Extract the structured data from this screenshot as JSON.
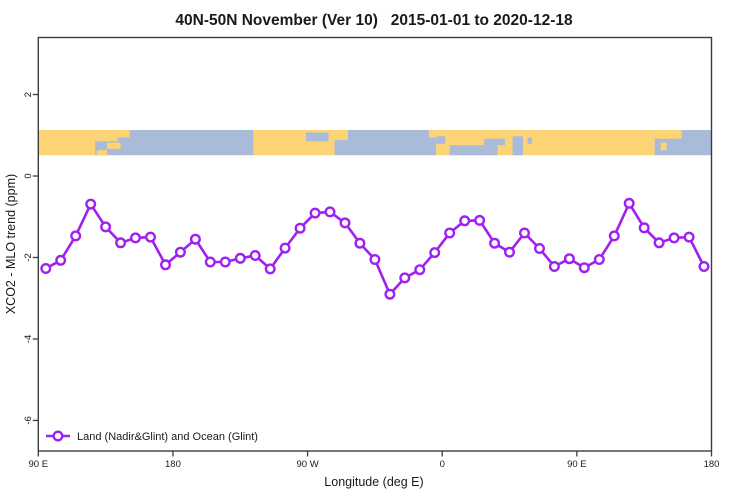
{
  "window": {
    "title": "40N-50N November (Ver 10)   2015-01-01 to 2020-12-18"
  },
  "colors": {
    "series_purple": "#A020F0",
    "marker_fill": "#ffffff",
    "land_orange": "#FCD476",
    "ocean_blue": "#A9BBD9",
    "axis_line": "#3c3c3c",
    "text": "#1a1a1a",
    "background": "#ffffff"
  },
  "chart_data": {
    "type": "line",
    "title": "40N-50N November (Ver 10)   2015-01-01 to 2020-12-18",
    "xlabel": "Longitude (deg E)",
    "ylabel": "XCO2 - MLO trend (ppm)",
    "grid": false,
    "legend_position": "bottom-left-inside",
    "x_axis": {
      "range_wrapped_deg_east": [
        90,
        540
      ],
      "ticks": [
        90,
        180,
        270,
        360,
        450,
        540
      ],
      "tick_labels": [
        "90 E",
        "180",
        "90 W",
        "0",
        "90 E",
        "180"
      ]
    },
    "y_axis": {
      "range": [
        -6.75,
        3.4
      ],
      "ticks": [
        2,
        0,
        -2,
        -4,
        -6
      ],
      "tick_labels": [
        "2",
        "0",
        "-2",
        "-4",
        "-6"
      ]
    },
    "series": [
      {
        "name": "Land (Nadir&Glint) and Ocean (Glint)",
        "color": "#A020F0",
        "marker": "open-circle",
        "x_wrapped": [
          95,
          105,
          115,
          125,
          135,
          145,
          155,
          165,
          175,
          185,
          195,
          205,
          215,
          225,
          235,
          245,
          255,
          265,
          275,
          285,
          295,
          305,
          315,
          325,
          335,
          345,
          355,
          365,
          375,
          385,
          395,
          405,
          415,
          425,
          435,
          445,
          455,
          465,
          475,
          485,
          495,
          505,
          515,
          525,
          535
        ],
        "values": [
          -2.27,
          -2.07,
          -1.47,
          -0.69,
          -1.25,
          -1.64,
          -1.52,
          -1.5,
          -2.18,
          -1.87,
          -1.55,
          -2.11,
          -2.11,
          -2.02,
          -1.95,
          -2.28,
          -1.77,
          -1.28,
          -0.91,
          -0.88,
          -1.15,
          -1.65,
          -2.05,
          -2.9,
          -2.5,
          -2.3,
          -1.88,
          -1.4,
          -1.1,
          -1.09,
          -1.65,
          -1.87,
          -1.4,
          -1.78,
          -2.22,
          -2.03,
          -2.25,
          -2.05,
          -1.47,
          -0.67,
          -1.27,
          -1.64,
          -1.52,
          -1.5,
          -2.22
        ]
      }
    ],
    "map_strip": {
      "description": "land-ocean world strip for latitude band 40N-50N",
      "y_top_value": 1.13,
      "y_bottom_value": 0.51,
      "land_color": "#FCD476",
      "ocean_color": "#A9BBD9",
      "segments": [
        {
          "lon0": 90,
          "lon1": 143,
          "f0": 0,
          "f1": 1,
          "t": "land"
        },
        {
          "lon0": 143,
          "lon1": 234,
          "f0": 0,
          "f1": 1,
          "t": "ocean"
        },
        {
          "lon0": 234,
          "lon1": 288,
          "f0": 0,
          "f1": 1,
          "t": "land"
        },
        {
          "lon0": 288,
          "lon1": 356,
          "f0": 0,
          "f1": 1,
          "t": "ocean"
        },
        {
          "lon0": 356,
          "lon1": 502,
          "f0": 0,
          "f1": 1,
          "t": "land"
        },
        {
          "lon0": 502,
          "lon1": 540,
          "f0": 0,
          "f1": 1,
          "t": "ocean"
        },
        {
          "lon0": 128,
          "lon1": 143,
          "f0": 0.45,
          "f1": 1,
          "t": "ocean"
        },
        {
          "lon0": 129,
          "lon1": 136,
          "f0": 0.8,
          "f1": 1,
          "t": "land"
        },
        {
          "lon0": 136,
          "lon1": 145,
          "f0": 0.5,
          "f1": 0.75,
          "t": "land"
        },
        {
          "lon0": 143,
          "lon1": 151,
          "f0": 0,
          "f1": 0.3,
          "t": "land"
        },
        {
          "lon0": 269,
          "lon1": 284,
          "f0": 0.1,
          "f1": 0.45,
          "t": "ocean"
        },
        {
          "lon0": 288,
          "lon1": 297,
          "f0": 0,
          "f1": 0.4,
          "t": "land"
        },
        {
          "lon0": 351,
          "lon1": 356,
          "f0": 0,
          "f1": 0.3,
          "t": "land"
        },
        {
          "lon0": 356,
          "lon1": 362,
          "f0": 0.25,
          "f1": 0.55,
          "t": "ocean"
        },
        {
          "lon0": 365,
          "lon1": 397,
          "f0": 0.6,
          "f1": 1,
          "t": "ocean"
        },
        {
          "lon0": 388,
          "lon1": 402,
          "f0": 0.35,
          "f1": 0.6,
          "t": "ocean"
        },
        {
          "lon0": 407,
          "lon1": 414,
          "f0": 0.25,
          "f1": 1,
          "t": "ocean"
        },
        {
          "lon0": 417,
          "lon1": 420,
          "f0": 0.3,
          "f1": 0.55,
          "t": "ocean"
        },
        {
          "lon0": 502,
          "lon1": 520,
          "f0": 0,
          "f1": 0.35,
          "t": "land"
        },
        {
          "lon0": 506,
          "lon1": 510,
          "f0": 0.5,
          "f1": 0.8,
          "t": "land"
        }
      ]
    }
  },
  "legend": {
    "label": "Land (Nadir&Glint) and Ocean (Glint)"
  }
}
